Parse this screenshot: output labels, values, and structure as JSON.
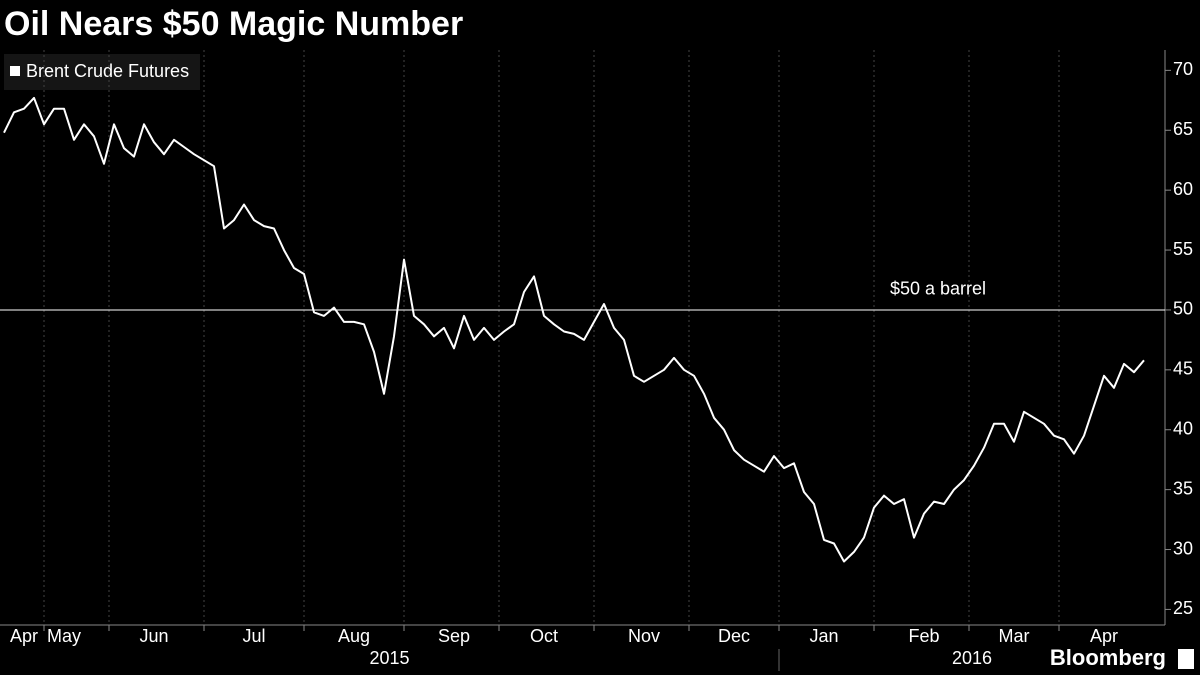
{
  "chart_data": {
    "type": "line",
    "title": "Oil Nears $50 Magic Number",
    "categories": [
      null,
      null,
      "Apr",
      null,
      null,
      null,
      "May",
      null,
      null,
      null,
      null,
      null,
      null,
      null,
      null,
      "Jun",
      null,
      null,
      null,
      null,
      null,
      null,
      null,
      null,
      null,
      "Jul",
      null,
      null,
      null,
      null,
      null,
      null,
      null,
      null,
      null,
      "Aug",
      null,
      null,
      null,
      null,
      null,
      null,
      null,
      null,
      null,
      "Sep",
      null,
      null,
      null,
      null,
      null,
      null,
      null,
      null,
      "Oct",
      null,
      null,
      null,
      null,
      null,
      null,
      null,
      null,
      null,
      "Nov",
      null,
      null,
      null,
      null,
      null,
      null,
      null,
      null,
      "Dec",
      null,
      null,
      null,
      null,
      null,
      null,
      null,
      null,
      "Jan",
      null,
      null,
      null,
      null,
      null,
      null,
      null,
      null,
      null,
      "Feb",
      null,
      null,
      null,
      null,
      null,
      null,
      null,
      null,
      "Mar",
      null,
      null,
      null,
      null,
      null,
      null,
      null,
      null,
      "Apr",
      null,
      null,
      null,
      null
    ],
    "series": [
      {
        "name": "Brent Crude Futures",
        "color": "#ffffff",
        "values": [
          64.8,
          66.5,
          66.8,
          67.7,
          65.5,
          66.8,
          66.8,
          64.2,
          65.5,
          64.5,
          62.2,
          65.5,
          63.5,
          62.8,
          65.5,
          64.0,
          63.0,
          64.2,
          63.6,
          63.0,
          62.5,
          62.0,
          56.8,
          57.5,
          58.8,
          57.5,
          57.0,
          56.8,
          55.0,
          53.5,
          53.0,
          49.8,
          49.5,
          50.2,
          49.0,
          49.0,
          48.8,
          46.5,
          43.0,
          47.8,
          54.2,
          49.5,
          48.8,
          47.8,
          48.5,
          46.8,
          49.5,
          47.5,
          48.5,
          47.5,
          48.2,
          48.8,
          51.5,
          52.8,
          49.5,
          48.8,
          48.2,
          48.0,
          47.5,
          49.0,
          50.5,
          48.5,
          47.5,
          44.5,
          44.0,
          44.5,
          45.0,
          46.0,
          45.0,
          44.5,
          43.0,
          41.0,
          40.0,
          38.3,
          37.5,
          37.0,
          36.5,
          37.8,
          36.8,
          37.2,
          34.8,
          33.8,
          30.8,
          30.5,
          29.0,
          29.8,
          31.0,
          33.5,
          34.5,
          33.8,
          34.2,
          31.0,
          33.0,
          34.0,
          33.8,
          35.0,
          35.8,
          37.0,
          38.5,
          40.5,
          40.5,
          39.0,
          41.5,
          41.0,
          40.5,
          39.5,
          39.2,
          38.0,
          39.5,
          42.0,
          44.5,
          43.5,
          45.5,
          44.8,
          45.8
        ]
      }
    ],
    "ylim": [
      23.7,
      71.7
    ],
    "yticks": [
      25,
      30,
      35,
      40,
      45,
      50,
      55,
      60,
      65,
      70
    ],
    "reference_line": {
      "value": 50,
      "label": "$50 a barrel"
    },
    "x_group_labels": [
      "2015",
      "2016"
    ],
    "source": "Bloomberg"
  }
}
